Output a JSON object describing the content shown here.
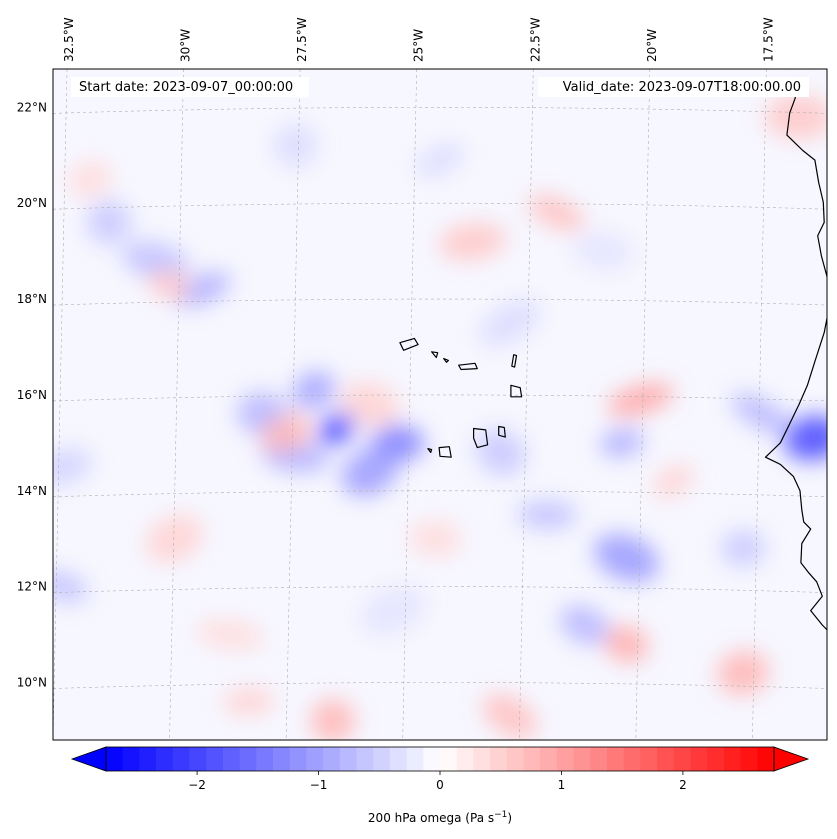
{
  "map": {
    "start_label": "Start date: 2023-09-07_00:00:00",
    "valid_label": "Valid_date: 2023-09-07T18:00:00.00",
    "lon_ticks": [
      {
        "value": -32.5,
        "label": "32.5°W"
      },
      {
        "value": -30.0,
        "label": "30°W"
      },
      {
        "value": -27.5,
        "label": "27.5°W"
      },
      {
        "value": -25.0,
        "label": "25°W"
      },
      {
        "value": -22.5,
        "label": "22.5°W"
      },
      {
        "value": -20.0,
        "label": "20°W"
      },
      {
        "value": -17.5,
        "label": "17.5°W"
      }
    ],
    "lat_ticks": [
      {
        "value": 10,
        "label": "10°N"
      },
      {
        "value": 12,
        "label": "12°N"
      },
      {
        "value": 14,
        "label": "14°N"
      },
      {
        "value": 16,
        "label": "16°N"
      },
      {
        "value": 18,
        "label": "18°N"
      },
      {
        "value": 20,
        "label": "20°N"
      },
      {
        "value": 22,
        "label": "22°N"
      }
    ],
    "lon_range": [
      -32.8,
      -16.2
    ],
    "lat_range": [
      8.8,
      22.8
    ],
    "colormap": "bwr",
    "low_color": "#0000ff",
    "mid_color": "#ffffff",
    "high_color": "#ff0000",
    "coastline_color": "#000000",
    "gridlines": "dashed"
  },
  "colorbar": {
    "label": "200 hPa omega (Pa s",
    "label_sup": "−1",
    "label_end": ")",
    "range": [
      -2.75,
      2.75
    ],
    "extend": "both",
    "levels": 40,
    "ticks": [
      {
        "value": -2,
        "label": "−2"
      },
      {
        "value": -1,
        "label": "−1"
      },
      {
        "value": 0,
        "label": "0"
      },
      {
        "value": 1,
        "label": "1"
      },
      {
        "value": 2,
        "label": "2"
      }
    ]
  },
  "features": {
    "blobs": [
      {
        "lon": -26.7,
        "lat": 15.3,
        "v": -2.0
      },
      {
        "lon": -25.4,
        "lat": 15.0,
        "v": -1.4
      },
      {
        "lon": -26.0,
        "lat": 14.4,
        "v": -1.1
      },
      {
        "lon": -27.6,
        "lat": 14.7,
        "v": -0.9
      },
      {
        "lon": -27.2,
        "lat": 16.1,
        "v": -1.0
      },
      {
        "lon": -28.3,
        "lat": 15.6,
        "v": -0.8
      },
      {
        "lon": -29.6,
        "lat": 18.2,
        "v": -0.9
      },
      {
        "lon": -30.6,
        "lat": 18.8,
        "v": -0.7
      },
      {
        "lon": -31.6,
        "lat": 19.6,
        "v": -0.6
      },
      {
        "lon": -32.6,
        "lat": 12.0,
        "v": -0.7
      },
      {
        "lon": -32.6,
        "lat": 14.5,
        "v": -0.5
      },
      {
        "lon": -20.5,
        "lat": 12.6,
        "v": -1.1
      },
      {
        "lon": -20.6,
        "lat": 15.0,
        "v": -0.9
      },
      {
        "lon": -21.4,
        "lat": 11.2,
        "v": -0.8
      },
      {
        "lon": -16.5,
        "lat": 15.1,
        "v": -2.0
      },
      {
        "lon": -17.6,
        "lat": 15.6,
        "v": -0.8
      },
      {
        "lon": -18.0,
        "lat": 12.8,
        "v": -0.6
      },
      {
        "lon": -23.2,
        "lat": 14.8,
        "v": -0.6
      },
      {
        "lon": -22.2,
        "lat": 13.5,
        "v": -0.7
      },
      {
        "lon": -23.0,
        "lat": 17.5,
        "v": -0.4
      },
      {
        "lon": -27.6,
        "lat": 21.2,
        "v": -0.4
      },
      {
        "lon": -24.5,
        "lat": 20.9,
        "v": -0.4
      },
      {
        "lon": -21.0,
        "lat": 19.0,
        "v": -0.3
      },
      {
        "lon": -25.5,
        "lat": 11.5,
        "v": -0.3
      },
      {
        "lon": -30.3,
        "lat": 18.3,
        "v": 0.6
      },
      {
        "lon": -27.8,
        "lat": 15.2,
        "v": 0.8
      },
      {
        "lon": -26.0,
        "lat": 15.8,
        "v": 0.5
      },
      {
        "lon": -20.2,
        "lat": 15.9,
        "v": 1.0
      },
      {
        "lon": -20.5,
        "lat": 10.8,
        "v": 0.9
      },
      {
        "lon": -18.0,
        "lat": 10.2,
        "v": 0.8
      },
      {
        "lon": -22.0,
        "lat": 19.8,
        "v": 0.7
      },
      {
        "lon": -23.8,
        "lat": 19.2,
        "v": 0.6
      },
      {
        "lon": -26.8,
        "lat": 9.2,
        "v": 0.8
      },
      {
        "lon": -28.6,
        "lat": 9.6,
        "v": 0.5
      },
      {
        "lon": -23.0,
        "lat": 9.3,
        "v": 0.7
      },
      {
        "lon": -16.8,
        "lat": 21.8,
        "v": 0.6
      },
      {
        "lon": -19.5,
        "lat": 14.2,
        "v": 0.5
      },
      {
        "lon": -24.6,
        "lat": 13.0,
        "v": 0.4
      },
      {
        "lon": -30.2,
        "lat": 13.0,
        "v": 0.5
      },
      {
        "lon": -29.0,
        "lat": 11.0,
        "v": 0.4
      },
      {
        "lon": -32.0,
        "lat": 20.5,
        "v": 0.4
      }
    ],
    "islands": [
      [
        [
          -25.36,
          17.09
        ],
        [
          -25.05,
          17.18
        ],
        [
          -24.97,
          17.05
        ],
        [
          -25.28,
          16.93
        ]
      ],
      [
        [
          -24.68,
          16.9
        ],
        [
          -24.55,
          16.88
        ],
        [
          -24.58,
          16.78
        ]
      ],
      [
        [
          -24.42,
          16.76
        ],
        [
          -24.32,
          16.72
        ],
        [
          -24.36,
          16.68
        ]
      ],
      [
        [
          -24.1,
          16.62
        ],
        [
          -23.75,
          16.66
        ],
        [
          -23.7,
          16.55
        ],
        [
          -24.05,
          16.53
        ]
      ],
      [
        [
          -22.92,
          16.84
        ],
        [
          -22.86,
          16.82
        ],
        [
          -22.9,
          16.58
        ],
        [
          -22.96,
          16.6
        ]
      ],
      [
        [
          -22.98,
          16.2
        ],
        [
          -22.78,
          16.15
        ],
        [
          -22.75,
          15.96
        ],
        [
          -22.98,
          15.96
        ]
      ],
      [
        [
          -23.78,
          15.3
        ],
        [
          -23.52,
          15.27
        ],
        [
          -23.48,
          14.96
        ],
        [
          -23.7,
          14.9
        ],
        [
          -23.78,
          15.1
        ]
      ],
      [
        [
          -23.24,
          15.34
        ],
        [
          -23.12,
          15.32
        ],
        [
          -23.1,
          15.12
        ],
        [
          -23.24,
          15.16
        ]
      ],
      [
        [
          -24.52,
          14.9
        ],
        [
          -24.3,
          14.92
        ],
        [
          -24.26,
          14.7
        ],
        [
          -24.5,
          14.72
        ]
      ],
      [
        [
          -24.76,
          14.88
        ],
        [
          -24.68,
          14.86
        ],
        [
          -24.7,
          14.8
        ]
      ]
    ],
    "coast": [
      [
        -16.94,
        22.62
      ],
      [
        -16.88,
        22.2
      ],
      [
        -17.0,
        21.88
      ],
      [
        -17.06,
        21.42
      ],
      [
        -16.72,
        21.1
      ],
      [
        -16.46,
        20.9
      ],
      [
        -16.38,
        20.44
      ],
      [
        -16.28,
        20.02
      ],
      [
        -16.26,
        19.6
      ],
      [
        -16.4,
        19.32
      ],
      [
        -16.32,
        18.9
      ],
      [
        -16.18,
        18.4
      ],
      [
        -16.16,
        17.8
      ],
      [
        -16.26,
        17.3
      ],
      [
        -16.46,
        16.7
      ],
      [
        -16.62,
        16.2
      ],
      [
        -16.8,
        15.8
      ],
      [
        -17.0,
        15.4
      ],
      [
        -17.2,
        15.0
      ],
      [
        -17.52,
        14.7
      ],
      [
        -17.2,
        14.55
      ],
      [
        -16.92,
        14.3
      ],
      [
        -16.78,
        14.0
      ],
      [
        -16.74,
        13.6
      ],
      [
        -16.7,
        13.35
      ],
      [
        -16.55,
        13.2
      ],
      [
        -16.74,
        12.9
      ],
      [
        -16.76,
        12.5
      ],
      [
        -16.6,
        12.3
      ],
      [
        -16.42,
        12.1
      ],
      [
        -16.3,
        11.8
      ],
      [
        -16.55,
        11.5
      ],
      [
        -16.3,
        11.2
      ],
      [
        -16.1,
        11.0
      ]
    ]
  }
}
